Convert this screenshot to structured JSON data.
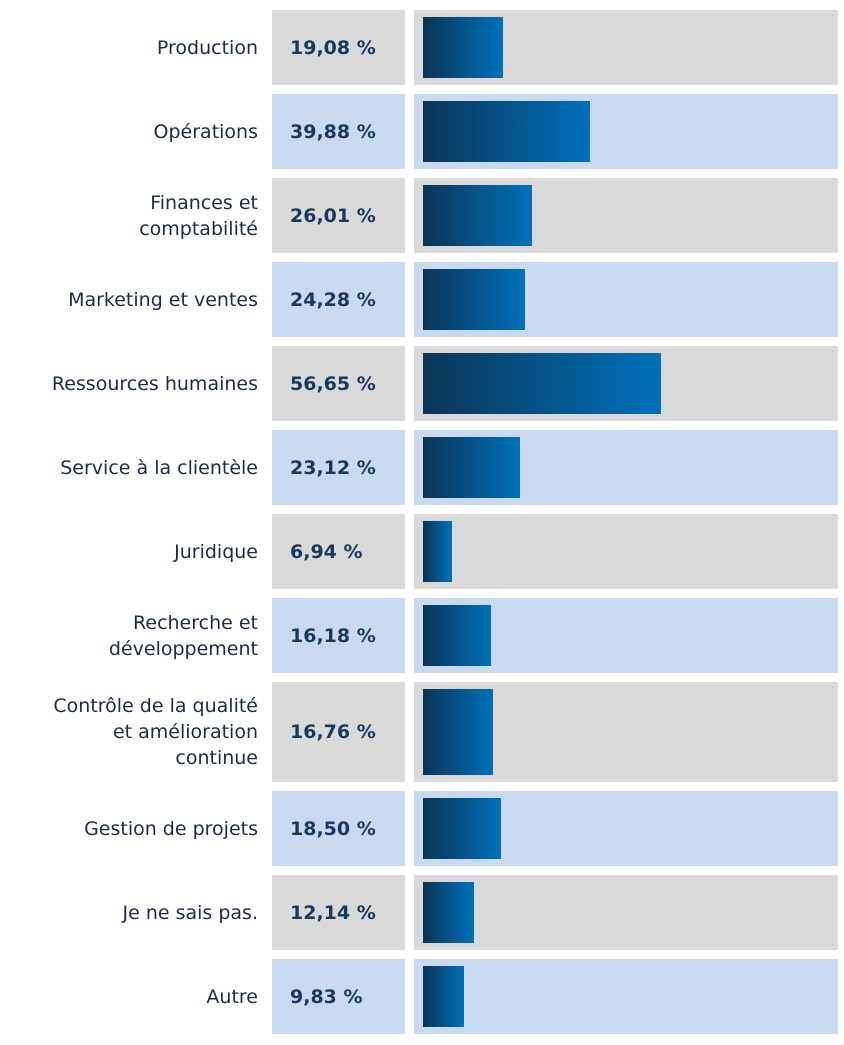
{
  "chart_data": {
    "type": "bar",
    "orientation": "horizontal",
    "categories": [
      "Production",
      "Opérations",
      "Finances et\ncomptabilité",
      "Marketing et ventes",
      "Ressources humaines",
      "Service à la clientèle",
      "Juridique",
      "Recherche et\ndéveloppement",
      "Contrôle de la qualité\net amélioration\ncontinue",
      "Gestion de projets",
      "Je ne sais pas.",
      "Autre"
    ],
    "values": [
      19.08,
      39.88,
      26.01,
      24.28,
      56.65,
      23.12,
      6.94,
      16.18,
      16.76,
      18.5,
      12.14,
      9.83
    ],
    "value_labels": [
      "19,08 %",
      "39,88 %",
      "26,01 %",
      "24,28 %",
      "56,65 %",
      "23,12 %",
      "6,94 %",
      "16,18 %",
      "16,76 %",
      "18,50 %",
      "12,14 %",
      "9,83 %"
    ],
    "color": [
      "#0b3556",
      "#0071bb"
    ],
    "row_colors": [
      "#d9d9d9",
      "#c9d9ef"
    ],
    "xlim": [
      0,
      100
    ]
  }
}
